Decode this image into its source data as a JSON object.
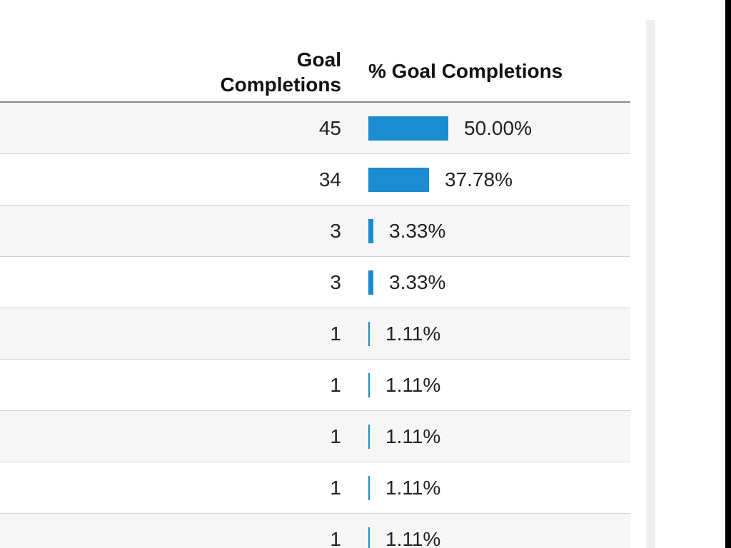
{
  "table": {
    "header": {
      "goal_line1": "Goal",
      "goal_line2": "Completions",
      "pct": "% Goal Completions"
    },
    "accent_color": "#1a8ccf",
    "rows": [
      {
        "completions": "45",
        "percent": "50.00%",
        "fraction": 0.5
      },
      {
        "completions": "34",
        "percent": "37.78%",
        "fraction": 0.3778
      },
      {
        "completions": "3",
        "percent": "3.33%",
        "fraction": 0.0333
      },
      {
        "completions": "3",
        "percent": "3.33%",
        "fraction": 0.0333
      },
      {
        "completions": "1",
        "percent": "1.11%",
        "fraction": 0.0111
      },
      {
        "completions": "1",
        "percent": "1.11%",
        "fraction": 0.0111
      },
      {
        "completions": "1",
        "percent": "1.11%",
        "fraction": 0.0111
      },
      {
        "completions": "1",
        "percent": "1.11%",
        "fraction": 0.0111
      },
      {
        "completions": "1",
        "percent": "1.11%",
        "fraction": 0.0111
      }
    ]
  }
}
